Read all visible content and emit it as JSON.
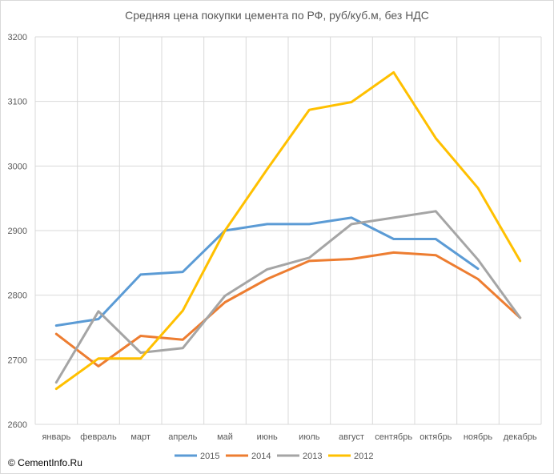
{
  "chart_data": {
    "type": "line",
    "title": "Средняя цена покупки цемента по РФ, руб/куб.м, без НДС",
    "xlabel": "",
    "ylabel": "",
    "categories": [
      "январь",
      "февраль",
      "март",
      "апрель",
      "май",
      "июнь",
      "июль",
      "август",
      "сентябрь",
      "октябрь",
      "ноябрь",
      "декабрь"
    ],
    "ylim": [
      2600,
      3200
    ],
    "yticks": [
      2600,
      2700,
      2800,
      2900,
      3000,
      3100,
      3200
    ],
    "grid": true,
    "legend_position": "bottom",
    "series": [
      {
        "name": "2015",
        "color": "#5b9bd5",
        "values": [
          2753,
          2763,
          2832,
          2836,
          2900,
          2910,
          2910,
          2920,
          2887,
          2887,
          2841,
          null
        ]
      },
      {
        "name": "2014",
        "color": "#ed7d31",
        "values": [
          2740,
          2690,
          2737,
          2731,
          2789,
          2825,
          2853,
          2856,
          2866,
          2862,
          2825,
          2765
        ]
      },
      {
        "name": "2013",
        "color": "#a5a5a5",
        "values": [
          2665,
          2775,
          2711,
          2718,
          2799,
          2840,
          2858,
          2910,
          2920,
          2930,
          2855,
          2765
        ]
      },
      {
        "name": "2012",
        "color": "#ffc000",
        "values": [
          2655,
          2702,
          2702,
          2776,
          2900,
          2995,
          3087,
          3099,
          3145,
          3043,
          2966,
          2853
        ]
      }
    ]
  },
  "footer": {
    "copyright": "© CementInfo.Ru"
  }
}
